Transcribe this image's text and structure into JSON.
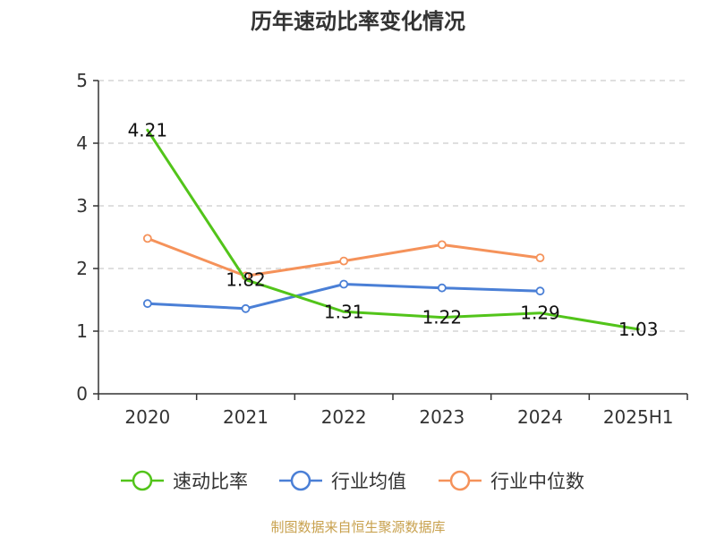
{
  "chart_data": {
    "type": "line",
    "title": "历年速动比率变化情况",
    "categories": [
      "2020",
      "2021",
      "2022",
      "2023",
      "2024",
      "2025H1"
    ],
    "ylim": [
      0,
      5
    ],
    "yticks": [
      0,
      1,
      2,
      3,
      4,
      5
    ],
    "grid": true,
    "legend_position": "bottom",
    "series": [
      {
        "name": "速动比率",
        "color": "#52c41a",
        "values": [
          4.21,
          1.82,
          1.31,
          1.22,
          1.29,
          1.03
        ],
        "data_labels": [
          "4.21",
          "1.82",
          "1.31",
          "1.22",
          "1.29",
          "1.03"
        ]
      },
      {
        "name": "行业均值",
        "color": "#4a7fd6",
        "values": [
          1.44,
          1.36,
          1.75,
          1.69,
          1.64,
          null
        ]
      },
      {
        "name": "行业中位数",
        "color": "#f5925a",
        "values": [
          2.48,
          1.88,
          2.12,
          2.38,
          2.17,
          null
        ]
      }
    ]
  },
  "source": "制图数据来自恒生聚源数据库"
}
